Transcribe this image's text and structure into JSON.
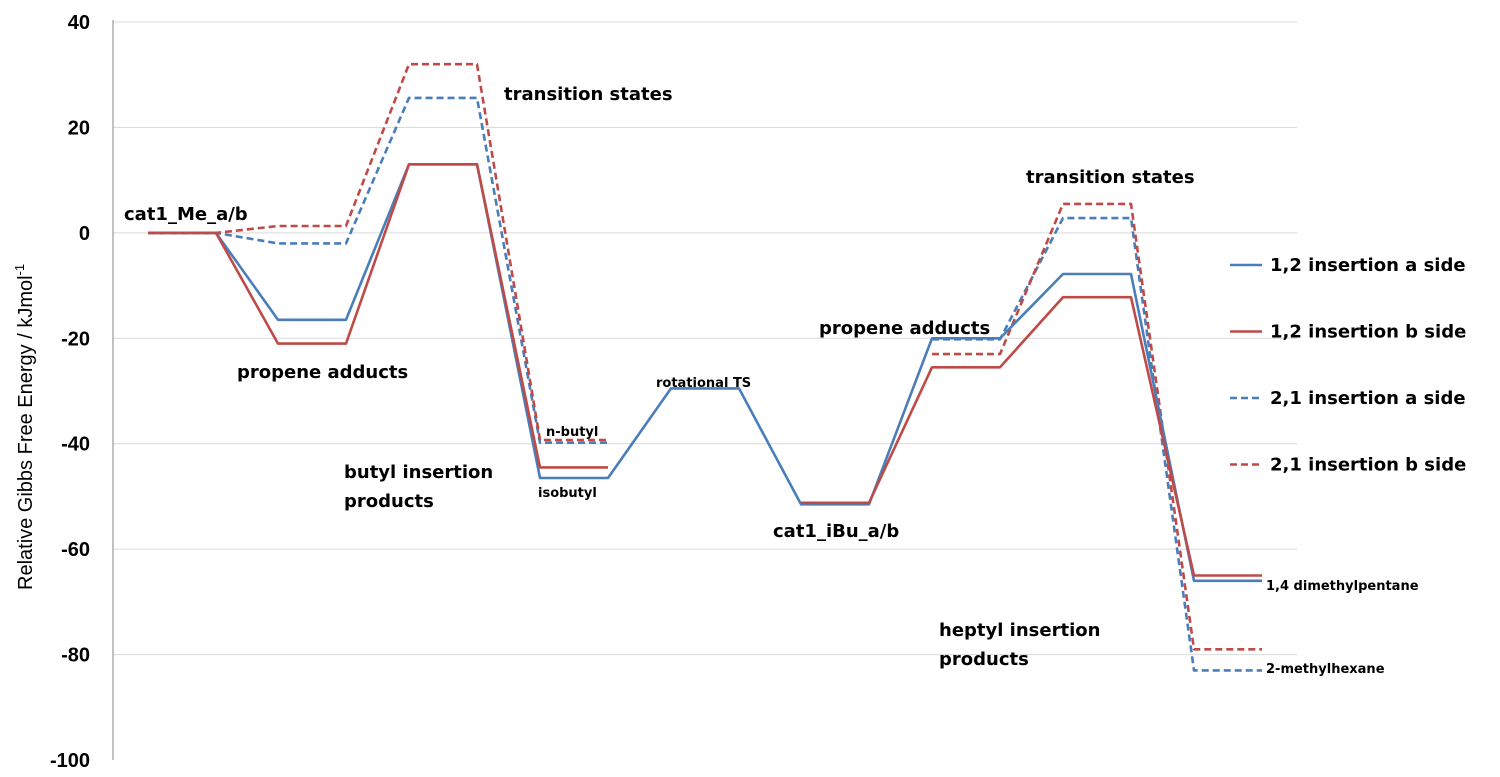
{
  "chart_data": {
    "type": "line",
    "ylabel": "Relative Gibbs Free Energy / kJmol",
    "ylabel_sup": "-1",
    "ylim": [
      -100,
      40
    ],
    "yticks": [
      40,
      20,
      0,
      -20,
      -40,
      -60,
      -80,
      -100
    ],
    "grid": "horizontal",
    "legend_position": "right",
    "series": [
      {
        "name": "1,2 insertion a side",
        "color": "#4a7ebb",
        "dash": false,
        "values": [
          0,
          0,
          -16.5,
          -16.5,
          13,
          13,
          -46.5,
          -46.5,
          -29.5,
          -29.5,
          -51.5,
          -51.5,
          -20,
          -20,
          -7.8,
          -7.8,
          -66,
          -66
        ]
      },
      {
        "name": "1,2 insertion b side",
        "color": "#be4b48",
        "dash": false,
        "values": [
          0,
          0,
          -21,
          -21,
          13,
          13,
          -44.5,
          -44.5,
          null,
          null,
          -51.2,
          -51.2,
          -25.5,
          -25.5,
          -12.2,
          -12.2,
          -65,
          -65
        ]
      },
      {
        "name": "2,1 insertion a side",
        "color": "#4a7ebb",
        "dash": true,
        "values": [
          0,
          0,
          -2,
          -2,
          25.6,
          25.6,
          -39.8,
          -39.8,
          null,
          null,
          null,
          null,
          -20.2,
          -20.2,
          2.8,
          2.8,
          -83,
          -83
        ]
      },
      {
        "name": "2,1 insertion b side",
        "color": "#be4b48",
        "dash": true,
        "values": [
          0,
          0,
          1.3,
          1.3,
          32,
          32,
          -39.3,
          -39.3,
          null,
          null,
          null,
          null,
          -23,
          -23,
          5.5,
          5.5,
          -79,
          -79
        ]
      }
    ],
    "annotations": {
      "cat1_me": "cat1_Me_a/b",
      "propene_adducts_1": "propene adducts",
      "transition_states_1": "transition states",
      "butyl_products_line1": "butyl insertion",
      "butyl_products_line2": "products",
      "n_butyl": "n-butyl",
      "isobutyl": "isobutyl",
      "rotational_ts": "rotational TS",
      "cat1_ibu": "cat1_iBu_a/b",
      "propene_adducts_2": "propene adducts",
      "transition_states_2": "transition states",
      "heptyl_products_line1": "heptyl insertion",
      "heptyl_products_line2": "products",
      "dimethylpentane": "1,4 dimethylpentane",
      "methylhexane": "2-methylhexane"
    }
  }
}
